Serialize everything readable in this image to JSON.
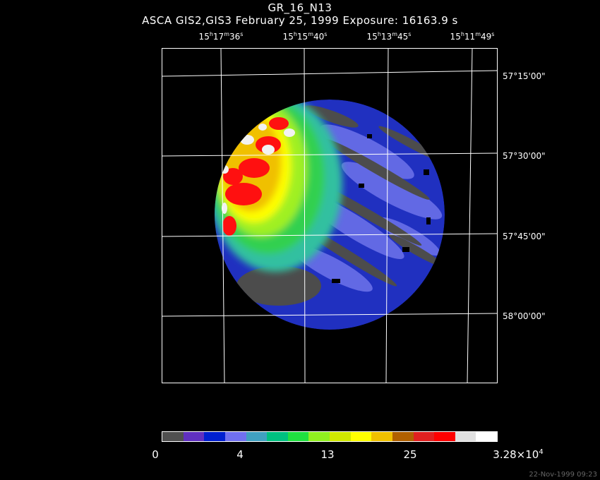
{
  "chart_data": {
    "type": "heatmap",
    "title": "GR_16_N13",
    "subtitle": "ASCA GIS2,GIS3 February 25, 1999 Exposure: 16163.9 s",
    "ra_ticks": [
      {
        "h": "15",
        "m": "17",
        "s": "36"
      },
      {
        "h": "15",
        "m": "15",
        "s": "40"
      },
      {
        "h": "15",
        "m": "13",
        "s": "45"
      },
      {
        "h": "15",
        "m": "11",
        "s": "49"
      }
    ],
    "dec_ticks": [
      "57°15'00\"",
      "57°30'00\"",
      "57°45'00\"",
      "58°00'00\""
    ],
    "grid": true,
    "colorbar": {
      "colors": [
        "#505050",
        "#6030c0",
        "#0020d0",
        "#7070f0",
        "#40a0c0",
        "#00c080",
        "#20e040",
        "#90f020",
        "#d0e800",
        "#ffff00",
        "#f0c000",
        "#b06000",
        "#e02020",
        "#ff0000",
        "#e0e0e0",
        "#ffffff"
      ],
      "tick_labels": [
        "0",
        "4",
        "13",
        "25"
      ],
      "max_label_mantissa": "3.28×10",
      "max_label_exponent": "4"
    }
  },
  "footer": {
    "timestamp": "22-Nov-1999 09:23"
  }
}
